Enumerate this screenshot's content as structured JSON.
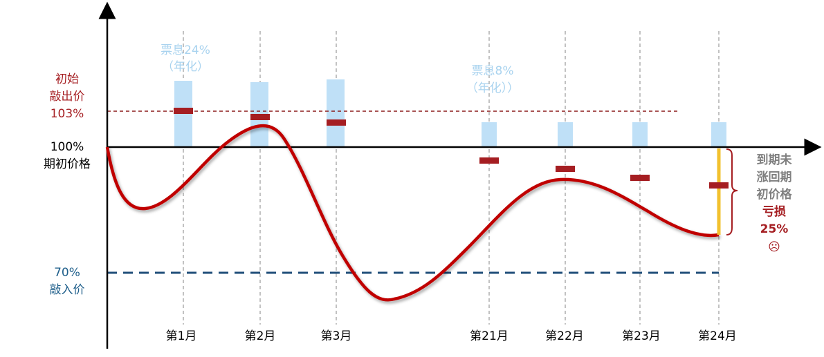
{
  "labels": {
    "knock_out": [
      "初始",
      "敲出价",
      "103%"
    ],
    "initial": [
      "100%",
      "期初价格"
    ],
    "knock_in": [
      "70%",
      "敲入价"
    ],
    "coupon_high": [
      "票息24%",
      "（年化）"
    ],
    "coupon_low": [
      "票息8%",
      "（年化））"
    ],
    "months": [
      "第1月",
      "第2月",
      "第3月",
      "第21月",
      "第22月",
      "第23月",
      "第24月"
    ],
    "outcome": [
      "到期未",
      "涨回期",
      "初价格",
      "亏损",
      "25%",
      "☹"
    ]
  }
}
